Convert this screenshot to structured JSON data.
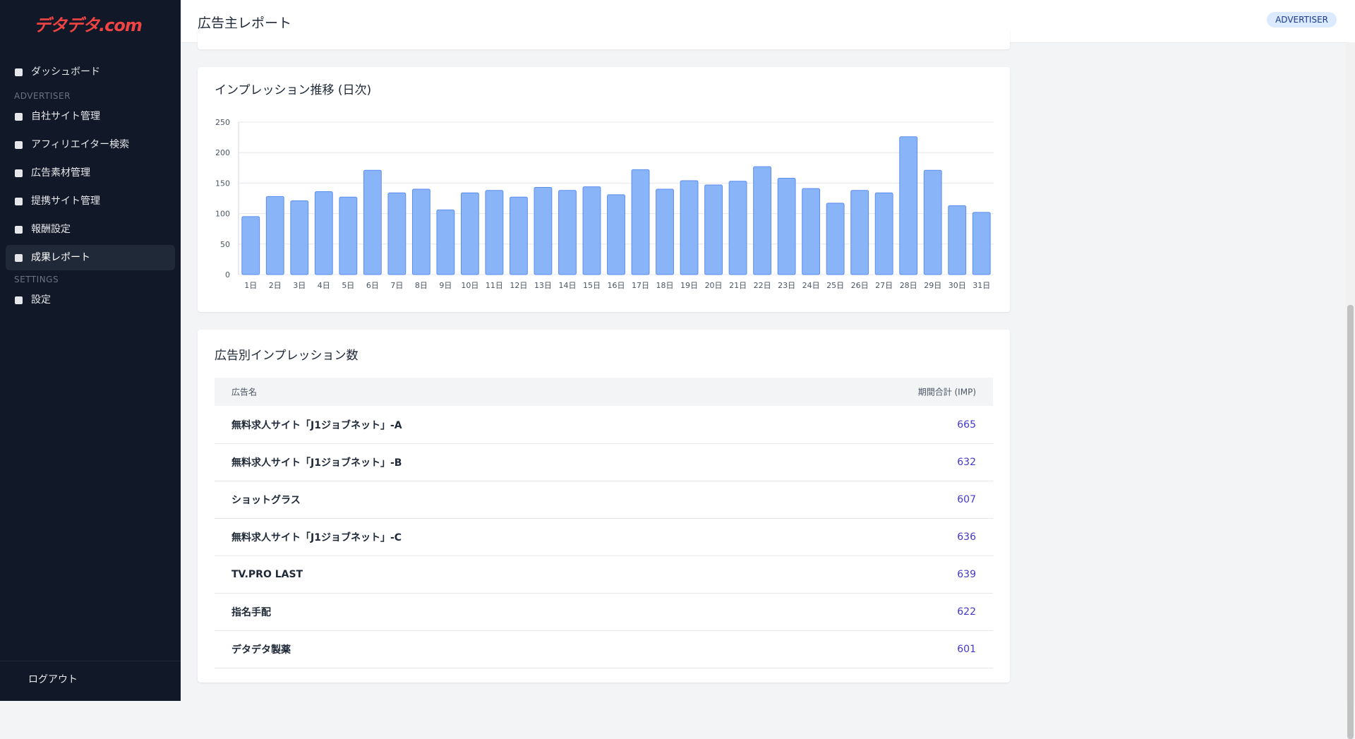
{
  "sidebar": {
    "logo": "デタデタ.com",
    "items": [
      {
        "label": "ダッシュボード"
      },
      {
        "section": "ADVERTISER"
      },
      {
        "label": "自社サイト管理"
      },
      {
        "label": "アフィリエイター検索"
      },
      {
        "label": "広告素材管理"
      },
      {
        "label": "提携サイト管理"
      },
      {
        "label": "報酬設定"
      },
      {
        "label": "成果レポート"
      },
      {
        "section": "SETTINGS"
      },
      {
        "label": "設定"
      }
    ],
    "logout": "ログアウト"
  },
  "header": {
    "title": "広告主レポート",
    "badge": "ADVERTISER"
  },
  "chart_data": {
    "type": "bar",
    "title": "インプレッション推移 (日次)",
    "categories": [
      "1日",
      "2日",
      "3日",
      "4日",
      "5日",
      "6日",
      "7日",
      "8日",
      "9日",
      "10日",
      "11日",
      "12日",
      "13日",
      "14日",
      "15日",
      "16日",
      "17日",
      "18日",
      "19日",
      "20日",
      "21日",
      "22日",
      "23日",
      "24日",
      "25日",
      "26日",
      "27日",
      "28日",
      "29日",
      "30日",
      "31日"
    ],
    "values": [
      95,
      128,
      121,
      136,
      127,
      171,
      134,
      140,
      106,
      134,
      138,
      127,
      143,
      138,
      144,
      131,
      172,
      140,
      154,
      147,
      153,
      177,
      158,
      141,
      117,
      138,
      134,
      226,
      171,
      113,
      102
    ],
    "color": "#8ab4f8",
    "ylim": [
      0,
      250
    ],
    "yticks": [
      0,
      50,
      100,
      150,
      200,
      250
    ],
    "grid": true
  },
  "table": {
    "title": "広告別インプレッション数",
    "headers": [
      "広告名",
      "期間合計 (IMP)"
    ],
    "rows": [
      [
        "無料求人サイト「J1ジョブネット」-A",
        665
      ],
      [
        "無料求人サイト「J1ジョブネット」-B",
        632
      ],
      [
        "ショットグラス",
        607
      ],
      [
        "無料求人サイト「J1ジョブネット」-C",
        636
      ],
      [
        "TV.PRO LAST",
        639
      ],
      [
        "指名手配",
        622
      ],
      [
        "デタデタ製薬",
        601
      ]
    ]
  }
}
